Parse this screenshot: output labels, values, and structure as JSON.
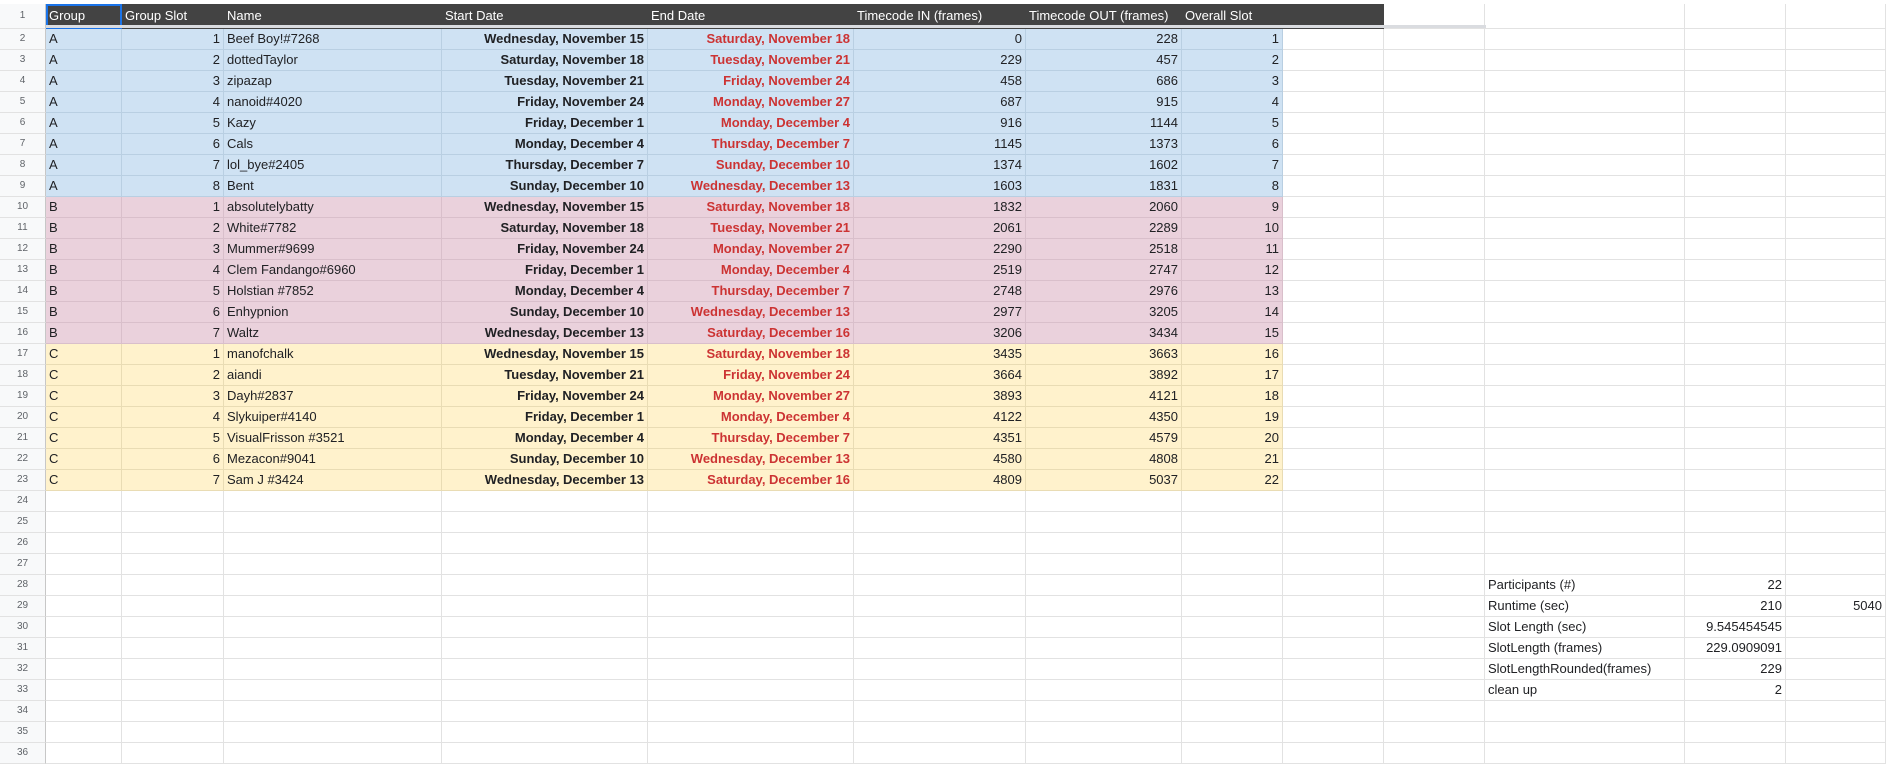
{
  "sheet": {
    "headers": [
      "Group",
      "Group Slot",
      "Name",
      "Start Date",
      "End Date",
      "Timecode IN (frames)",
      "Timecode OUT (frames)",
      "Overall Slot"
    ],
    "rows": [
      {
        "group": "A",
        "slot": "1",
        "name": "Beef Boy!#7268",
        "start": "Wednesday, November 15",
        "end": "Saturday, November 18",
        "tin": "0",
        "tout": "228",
        "overall": "1"
      },
      {
        "group": "A",
        "slot": "2",
        "name": "dottedTaylor",
        "start": "Saturday, November 18",
        "end": "Tuesday, November 21",
        "tin": "229",
        "tout": "457",
        "overall": "2"
      },
      {
        "group": "A",
        "slot": "3",
        "name": "zipazap",
        "start": "Tuesday, November 21",
        "end": "Friday, November 24",
        "tin": "458",
        "tout": "686",
        "overall": "3"
      },
      {
        "group": "A",
        "slot": "4",
        "name": "nanoid#4020",
        "start": "Friday, November 24",
        "end": "Monday, November 27",
        "tin": "687",
        "tout": "915",
        "overall": "4"
      },
      {
        "group": "A",
        "slot": "5",
        "name": "Kazy",
        "start": "Friday, December 1",
        "end": "Monday, December 4",
        "tin": "916",
        "tout": "1144",
        "overall": "5"
      },
      {
        "group": "A",
        "slot": "6",
        "name": "Cals",
        "start": "Monday, December 4",
        "end": "Thursday, December 7",
        "tin": "1145",
        "tout": "1373",
        "overall": "6"
      },
      {
        "group": "A",
        "slot": "7",
        "name": "lol_bye#2405",
        "start": "Thursday, December 7",
        "end": "Sunday, December 10",
        "tin": "1374",
        "tout": "1602",
        "overall": "7"
      },
      {
        "group": "A",
        "slot": "8",
        "name": "Bent",
        "start": "Sunday, December 10",
        "end": "Wednesday, December 13",
        "tin": "1603",
        "tout": "1831",
        "overall": "8"
      },
      {
        "group": "B",
        "slot": "1",
        "name": "absolutelybatty",
        "start": "Wednesday, November 15",
        "end": "Saturday, November 18",
        "tin": "1832",
        "tout": "2060",
        "overall": "9"
      },
      {
        "group": "B",
        "slot": "2",
        "name": "White#7782",
        "start": "Saturday, November 18",
        "end": "Tuesday, November 21",
        "tin": "2061",
        "tout": "2289",
        "overall": "10"
      },
      {
        "group": "B",
        "slot": "3",
        "name": "Mummer#9699",
        "start": "Friday, November 24",
        "end": "Monday, November 27",
        "tin": "2290",
        "tout": "2518",
        "overall": "11"
      },
      {
        "group": "B",
        "slot": "4",
        "name": "Clem Fandango#6960",
        "start": "Friday, December 1",
        "end": "Monday, December 4",
        "tin": "2519",
        "tout": "2747",
        "overall": "12"
      },
      {
        "group": "B",
        "slot": "5",
        "name": "Holstian #7852",
        "start": "Monday, December 4",
        "end": "Thursday, December 7",
        "tin": "2748",
        "tout": "2976",
        "overall": "13"
      },
      {
        "group": "B",
        "slot": "6",
        "name": "Enhypnion",
        "start": "Sunday, December 10",
        "end": "Wednesday, December 13",
        "tin": "2977",
        "tout": "3205",
        "overall": "14"
      },
      {
        "group": "B",
        "slot": "7",
        "name": "Waltz",
        "start": "Wednesday, December 13",
        "end": "Saturday, December 16",
        "tin": "3206",
        "tout": "3434",
        "overall": "15"
      },
      {
        "group": "C",
        "slot": "1",
        "name": "manofchalk",
        "start": "Wednesday, November 15",
        "end": "Saturday, November 18",
        "tin": "3435",
        "tout": "3663",
        "overall": "16"
      },
      {
        "group": "C",
        "slot": "2",
        "name": "aiandi",
        "start": "Tuesday, November 21",
        "end": "Friday, November 24",
        "tin": "3664",
        "tout": "3892",
        "overall": "17"
      },
      {
        "group": "C",
        "slot": "3",
        "name": "Dayh#2837",
        "start": "Friday, November 24",
        "end": "Monday, November 27",
        "tin": "3893",
        "tout": "4121",
        "overall": "18"
      },
      {
        "group": "C",
        "slot": "4",
        "name": "Slykuiper#4140",
        "start": "Friday, December 1",
        "end": "Monday, December 4",
        "tin": "4122",
        "tout": "4350",
        "overall": "19"
      },
      {
        "group": "C",
        "slot": "5",
        "name": "VisualFrisson #3521",
        "start": "Monday, December 4",
        "end": "Thursday, December 7",
        "tin": "4351",
        "tout": "4579",
        "overall": "20"
      },
      {
        "group": "C",
        "slot": "6",
        "name": "Mezacon#9041",
        "start": "Sunday, December 10",
        "end": "Wednesday, December 13",
        "tin": "4580",
        "tout": "4808",
        "overall": "21"
      },
      {
        "group": "C",
        "slot": "7",
        "name": "Sam J #3424",
        "start": "Wednesday, December 13",
        "end": "Saturday, December 16",
        "tin": "4809",
        "tout": "5037",
        "overall": "22"
      }
    ],
    "summary": [
      {
        "label": "Participants (#)",
        "value": "22",
        "extra": ""
      },
      {
        "label": "Runtime (sec)",
        "value": "210",
        "extra": "5040"
      },
      {
        "label": "Slot Length (sec)",
        "value": "9.545454545",
        "extra": ""
      },
      {
        "label": "SlotLength (frames)",
        "value": "229.0909091",
        "extra": ""
      },
      {
        "label": "SlotLengthRounded(frames)",
        "value": "229",
        "extra": ""
      },
      {
        "label": "clean up",
        "value": "2",
        "extra": ""
      }
    ],
    "row_numbers": [
      "1",
      "2",
      "3",
      "4",
      "5",
      "6",
      "7",
      "8",
      "9",
      "10",
      "11",
      "12",
      "13",
      "14",
      "15",
      "16",
      "17",
      "18",
      "19",
      "20",
      "21",
      "22",
      "23",
      "24",
      "25",
      "26",
      "27",
      "28",
      "29",
      "30",
      "31",
      "32",
      "33",
      "34",
      "35",
      "36"
    ]
  },
  "colors": {
    "header": "#434343",
    "groupA": "#cfe2f3",
    "groupB": "#ead1dc",
    "groupC": "#fff2cc",
    "endDate": "#cc3333"
  }
}
